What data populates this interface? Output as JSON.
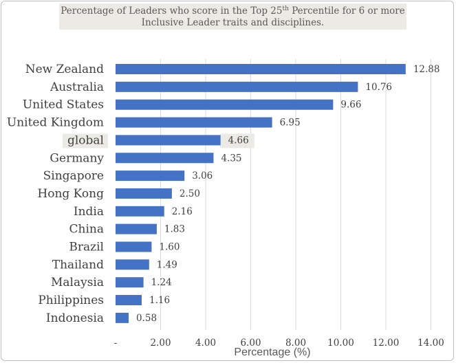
{
  "chart_data": {
    "type": "bar",
    "orientation": "horizontal",
    "title": {
      "line1_before_sup": "Percentage of Leaders who score in the Top 25",
      "line1_sup": "th",
      "line1_after_sup": " Percentile for 6 or more",
      "line2": "Inclusive Leader traits and disciplines."
    },
    "xlabel": "Percentage (%)",
    "ylabel": "",
    "xlim": [
      0,
      14
    ],
    "x_ticks": [
      0,
      2,
      4,
      6,
      8,
      10,
      12,
      14
    ],
    "x_tick_labels": [
      "-",
      "2.00",
      "4.00",
      "6.00",
      "8.00",
      "10.00",
      "12.00",
      "14.00"
    ],
    "grid": true,
    "categories": [
      "New Zealand",
      "Australia",
      "United States",
      "United Kingdom",
      "global",
      "Germany",
      "Singapore",
      "Hong Kong",
      "India",
      "China",
      "Brazil",
      "Thailand",
      "Malaysia",
      "Philippines",
      "Indonesia"
    ],
    "values": [
      12.88,
      10.76,
      9.66,
      6.95,
      4.66,
      4.35,
      3.06,
      2.5,
      2.16,
      1.83,
      1.6,
      1.49,
      1.24,
      1.16,
      0.58
    ],
    "value_labels": [
      "12.88",
      "10.76",
      "9.66",
      "6.95",
      "4.66",
      "4.35",
      "3.06",
      "2.50",
      "2.16",
      "1.83",
      "1.60",
      "1.49",
      "1.24",
      "1.16",
      "0.58"
    ],
    "highlighted_category": "global",
    "colors": {
      "bar": "#4472c4",
      "grid": "#d9d9d9",
      "highlight_label_bg": "#eceae4",
      "title_bg": "#eceae4",
      "text": "#404040"
    }
  }
}
